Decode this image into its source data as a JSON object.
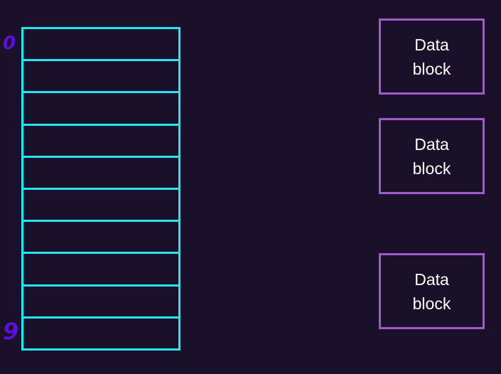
{
  "index_table": {
    "cell_count": 10,
    "first_label": "0",
    "last_label": "9",
    "border_color": "#22e6f0",
    "label_color": "#5a10d8"
  },
  "data_blocks": [
    {
      "label": "Data block"
    },
    {
      "label": "Data block"
    },
    {
      "label": "Data block"
    }
  ],
  "colors": {
    "background": "#1b1029",
    "data_block_border": "#a259c9",
    "text": "#ffffff"
  }
}
